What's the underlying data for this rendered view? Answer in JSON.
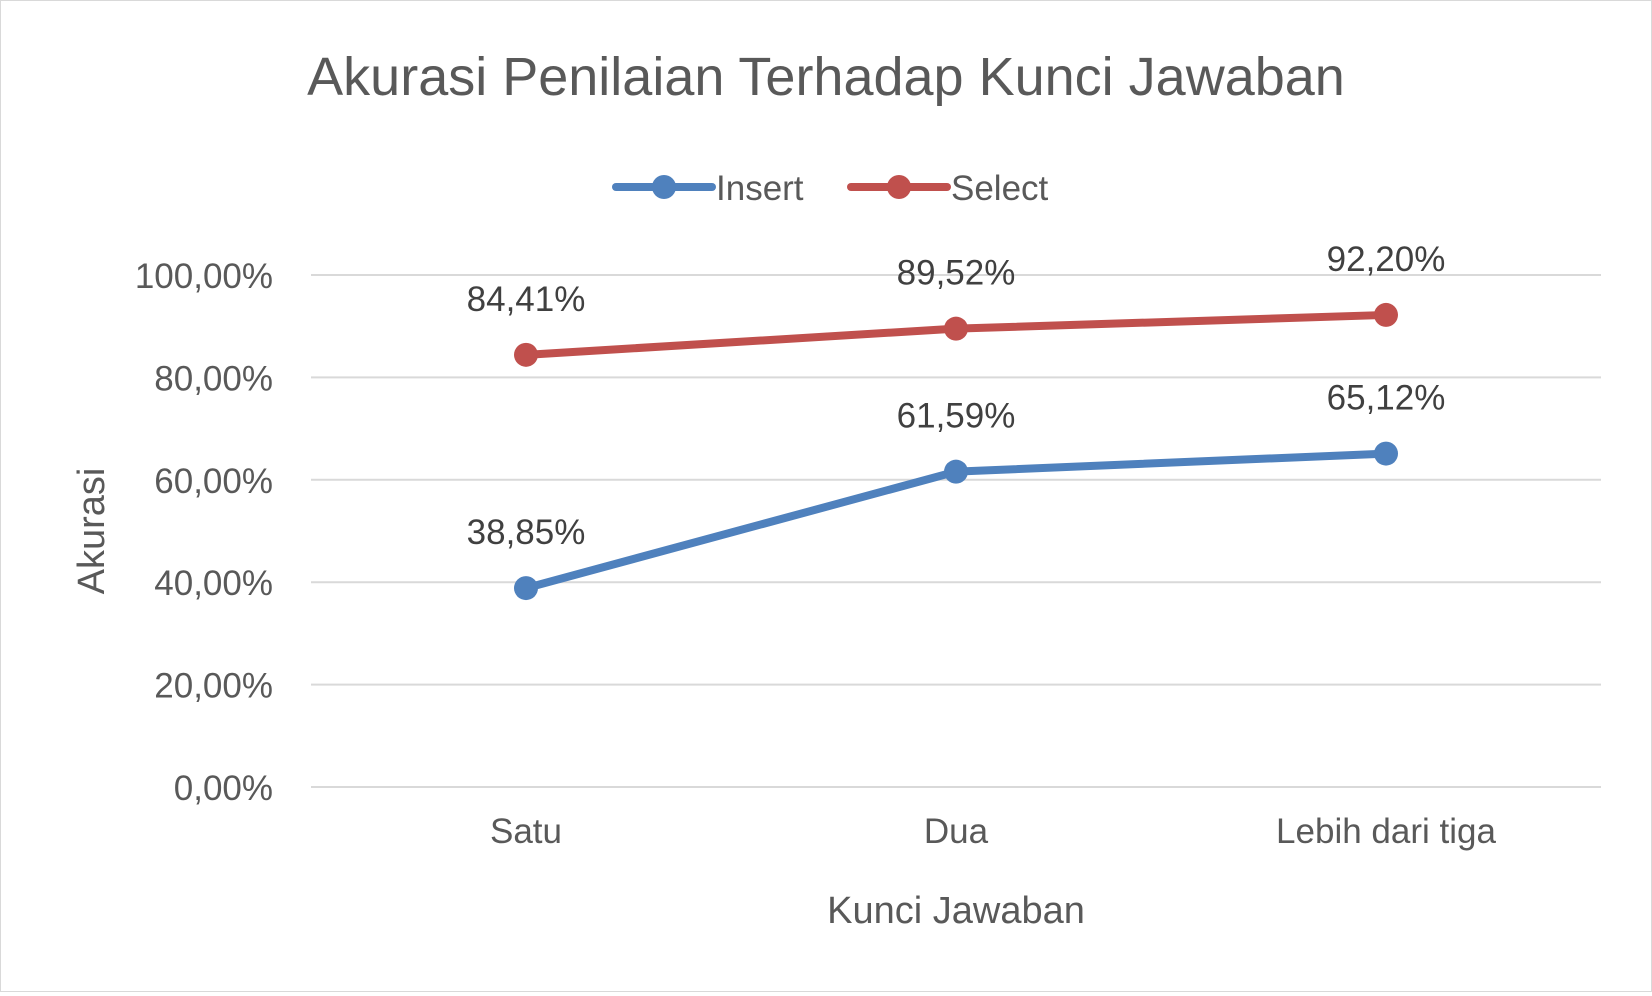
{
  "chart_data": {
    "type": "line",
    "title": "Akurasi Penilaian Terhadap Kunci Jawaban",
    "xlabel": "Kunci Jawaban",
    "ylabel": "Akurasi",
    "categories": [
      "Satu",
      "Dua",
      "Lebih dari tiga"
    ],
    "ylim": [
      0,
      100
    ],
    "yticks": [
      {
        "value": 0,
        "label": "0,00%"
      },
      {
        "value": 20,
        "label": "20,00%"
      },
      {
        "value": 40,
        "label": "40,00%"
      },
      {
        "value": 60,
        "label": "60,00%"
      },
      {
        "value": 80,
        "label": "80,00%"
      },
      {
        "value": 100,
        "label": "100,00%"
      }
    ],
    "grid": true,
    "legend_position": "top",
    "series": [
      {
        "name": "Insert",
        "color": "#4f81bd",
        "values": [
          38.85,
          61.59,
          65.12
        ],
        "labels": [
          "38,85%",
          "61,59%",
          "65,12%"
        ]
      },
      {
        "name": "Select",
        "color": "#c0504d",
        "values": [
          84.41,
          89.52,
          92.2
        ],
        "labels": [
          "84,41%",
          "89,52%",
          "92,20%"
        ]
      }
    ]
  }
}
